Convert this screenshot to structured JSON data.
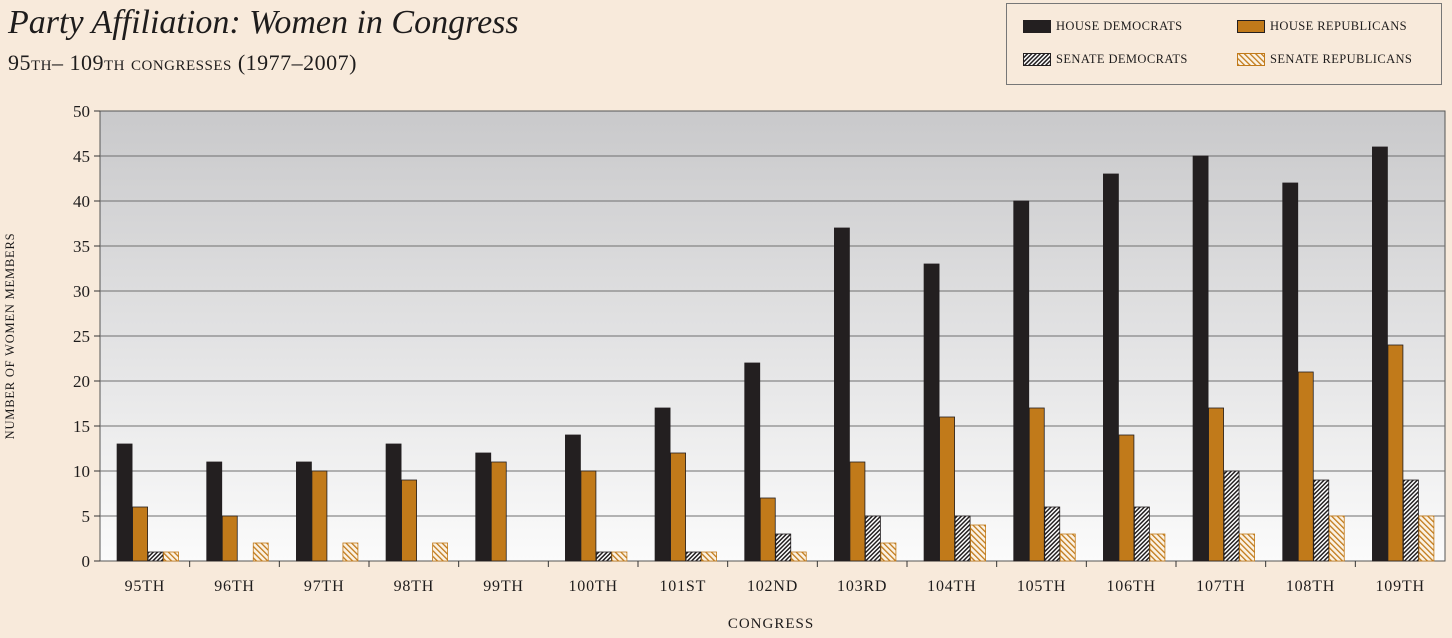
{
  "chart_data": {
    "type": "bar",
    "title": "Party Affiliation: Women in Congress",
    "subtitle": "95th– 109th congresses (1977–2007)",
    "xlabel": "CONGRESS",
    "ylabel": "NUMBER OF WOMEN MEMBERS",
    "ylim": [
      0,
      50
    ],
    "yticks": [
      "0",
      "5",
      "10",
      "15",
      "20",
      "25",
      "30",
      "35",
      "40",
      "45",
      "50"
    ],
    "categories": [
      "95TH",
      "96TH",
      "97TH",
      "98TH",
      "99TH",
      "100TH",
      "101ST",
      "102ND",
      "103RD",
      "104TH",
      "105TH",
      "106TH",
      "107TH",
      "108TH",
      "109TH"
    ],
    "series": [
      {
        "name": "HOUSE DEMOCRATS",
        "color": "#231f20",
        "pattern": "solid",
        "values": [
          13,
          11,
          11,
          13,
          12,
          14,
          17,
          22,
          37,
          33,
          40,
          43,
          45,
          42,
          46
        ]
      },
      {
        "name": "HOUSE REPUBLICANS",
        "color": "#c17a1a",
        "pattern": "solid",
        "values": [
          6,
          5,
          10,
          9,
          11,
          10,
          12,
          7,
          11,
          16,
          17,
          14,
          17,
          21,
          24
        ]
      },
      {
        "name": "SENATE DEMOCRATS",
        "color": "#231f20",
        "pattern": "hatch-dark",
        "values": [
          1,
          0,
          0,
          0,
          0,
          1,
          1,
          3,
          5,
          5,
          6,
          6,
          10,
          9,
          9
        ]
      },
      {
        "name": "SENATE REPUBLICANS",
        "color": "#c17a1a",
        "pattern": "hatch-gold",
        "values": [
          1,
          2,
          2,
          2,
          0,
          1,
          1,
          1,
          2,
          4,
          3,
          3,
          3,
          5,
          5
        ]
      }
    ],
    "grid": true,
    "legend_position": "top-right"
  }
}
